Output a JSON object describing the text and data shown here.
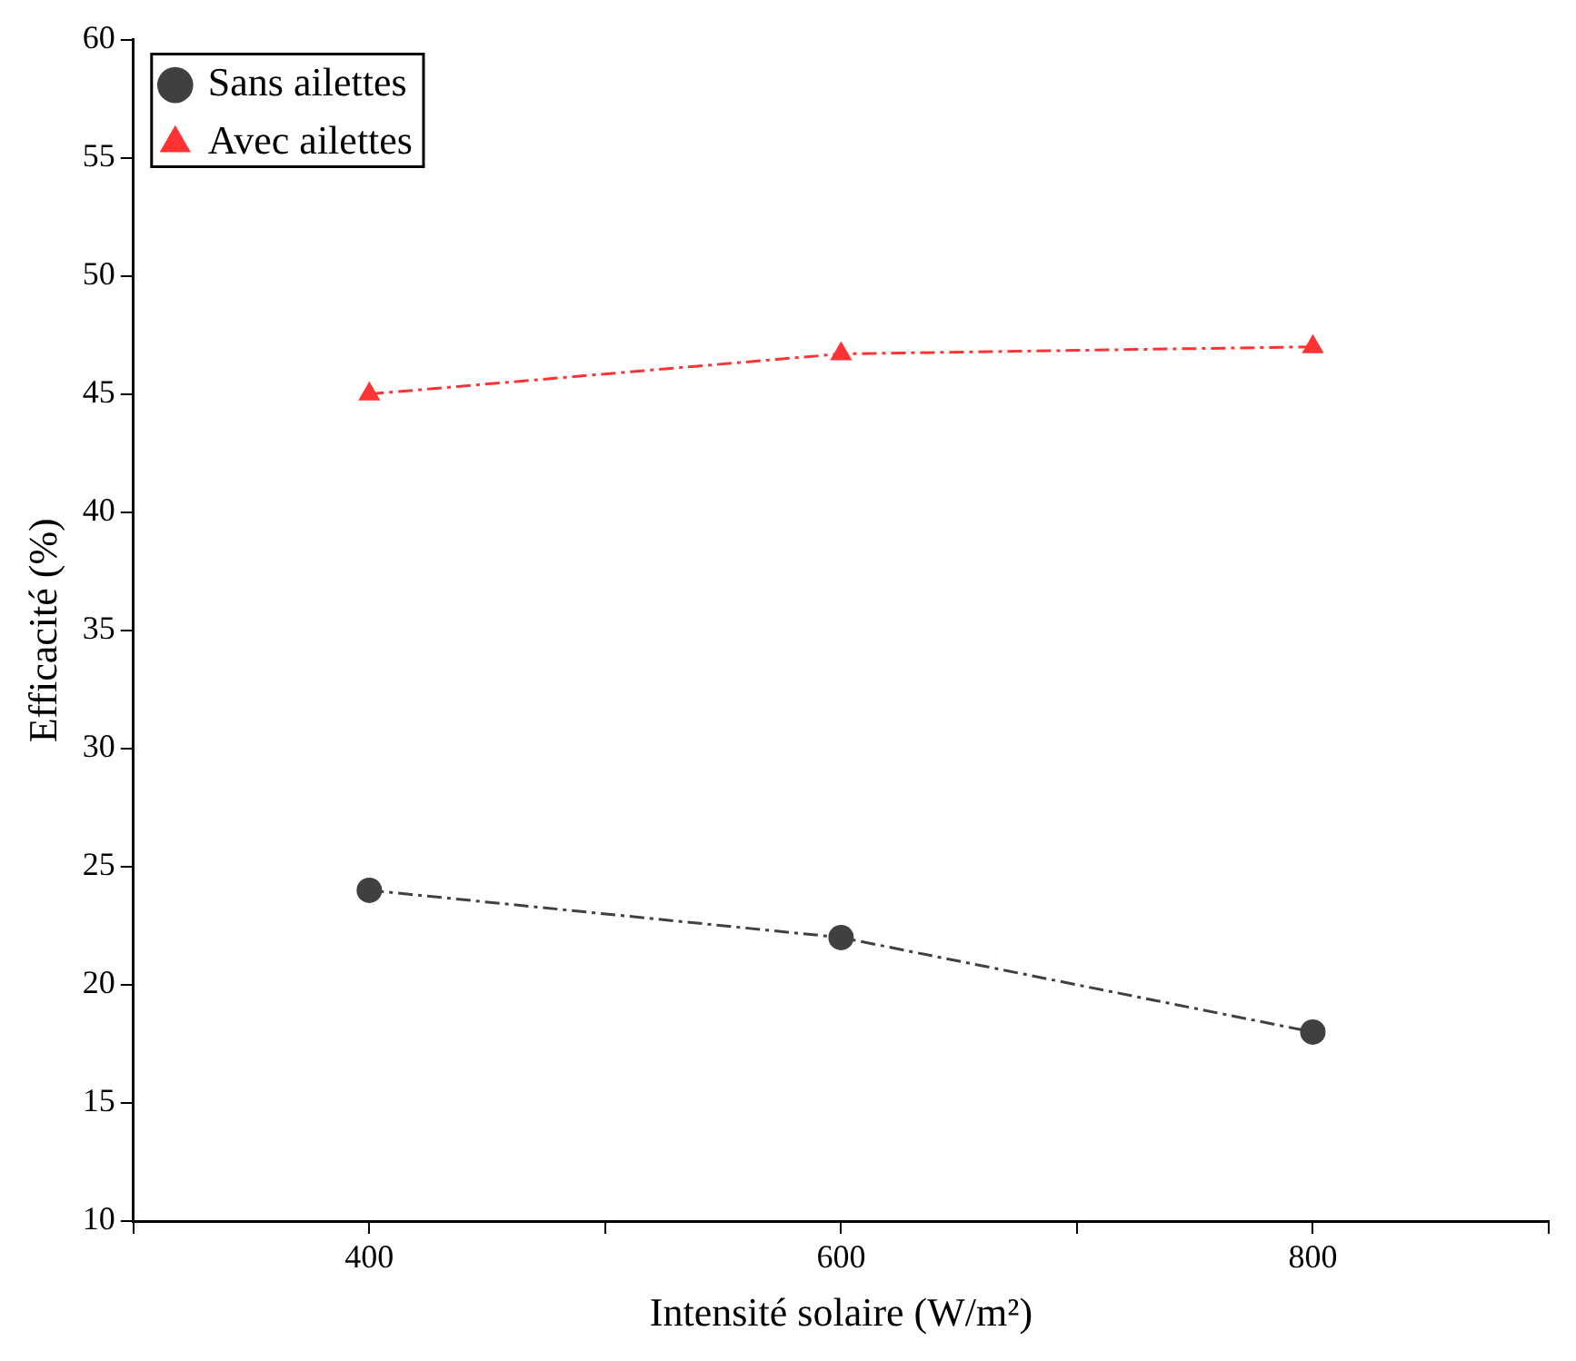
{
  "chart_data": {
    "type": "line",
    "xlabel": "Intensité solaire (W/m²)",
    "ylabel": "Efficacité (%)",
    "x": [
      400,
      600,
      800
    ],
    "series": [
      {
        "name": "Sans ailettes",
        "color": "#404040",
        "values": [
          24,
          22,
          18
        ],
        "marker": "circle"
      },
      {
        "name": "Avec ailettes",
        "color": "#ff3333",
        "values": [
          45,
          46.7,
          47
        ],
        "marker": "triangle"
      }
    ],
    "xlim": [
      300,
      900
    ],
    "xticks": [
      {
        "value": 300,
        "label": null
      },
      400,
      {
        "value": 500,
        "label": null
      },
      600,
      {
        "value": 700,
        "label": null
      },
      800,
      {
        "value": 900,
        "label": null
      }
    ],
    "ylim": [
      10,
      60
    ],
    "yticks": [
      10,
      15,
      20,
      25,
      30,
      35,
      40,
      45,
      50,
      55,
      60
    ],
    "grid": false,
    "legend": "top left",
    "line_style": "dashed"
  }
}
